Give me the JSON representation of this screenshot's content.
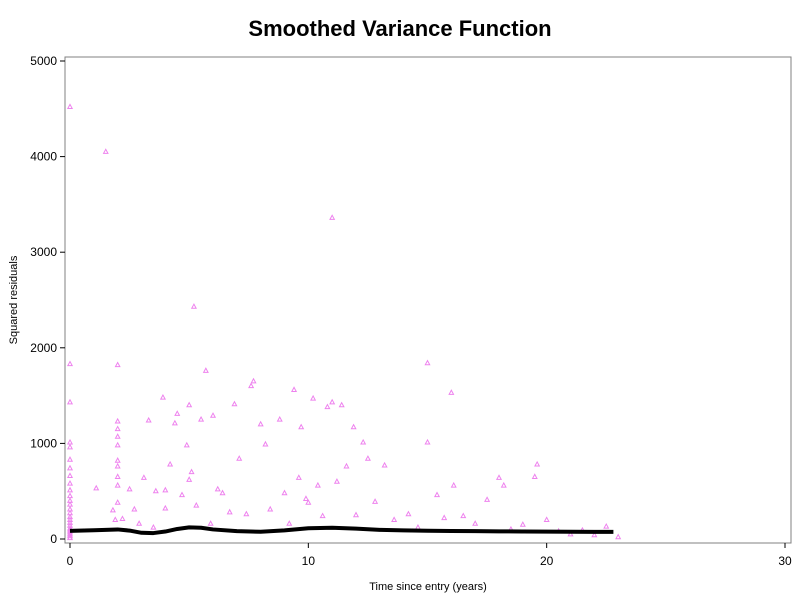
{
  "chart_data": {
    "type": "scatter",
    "title": "Smoothed Variance Function",
    "xlabel": "Time since entry (years)",
    "ylabel": "Squared residuals",
    "xlim": [
      0,
      30
    ],
    "ylim": [
      0,
      5000
    ],
    "xticks": [
      0,
      10,
      20,
      30
    ],
    "yticks": [
      0,
      1000,
      2000,
      3000,
      4000,
      5000
    ],
    "grid": false,
    "colors": {
      "points": "#ee82ee",
      "smooth": "#000000",
      "frame": "#808080"
    },
    "series": [
      {
        "kind": "points",
        "marker": "triangle",
        "points": [
          [
            0,
            4520
          ],
          [
            0,
            1830
          ],
          [
            0,
            1430
          ],
          [
            0,
            1010
          ],
          [
            0,
            960
          ],
          [
            0,
            830
          ],
          [
            0,
            740
          ],
          [
            0,
            660
          ],
          [
            0,
            580
          ],
          [
            0,
            510
          ],
          [
            0,
            450
          ],
          [
            0,
            400
          ],
          [
            0,
            360
          ],
          [
            0,
            310
          ],
          [
            0,
            270
          ],
          [
            0,
            230
          ],
          [
            0,
            200
          ],
          [
            0,
            170
          ],
          [
            0,
            140
          ],
          [
            0,
            110
          ],
          [
            0,
            90
          ],
          [
            0,
            70
          ],
          [
            0,
            50
          ],
          [
            0,
            30
          ],
          [
            0,
            10
          ],
          [
            1.1,
            530
          ],
          [
            1.5,
            4050
          ],
          [
            1.8,
            300
          ],
          [
            1.9,
            200
          ],
          [
            2.0,
            1820
          ],
          [
            2.0,
            1230
          ],
          [
            2.0,
            1150
          ],
          [
            2.0,
            1070
          ],
          [
            2.0,
            980
          ],
          [
            2.0,
            820
          ],
          [
            2.0,
            760
          ],
          [
            2.0,
            650
          ],
          [
            2.0,
            560
          ],
          [
            2.0,
            380
          ],
          [
            2.2,
            210
          ],
          [
            2.5,
            520
          ],
          [
            2.7,
            310
          ],
          [
            2.9,
            160
          ],
          [
            3.1,
            640
          ],
          [
            3.3,
            1240
          ],
          [
            3.5,
            120
          ],
          [
            3.6,
            500
          ],
          [
            3.9,
            1480
          ],
          [
            4.0,
            510
          ],
          [
            4.0,
            320
          ],
          [
            4.2,
            780
          ],
          [
            4.4,
            1210
          ],
          [
            4.5,
            1310
          ],
          [
            4.7,
            460
          ],
          [
            4.9,
            980
          ],
          [
            5.0,
            620
          ],
          [
            5.0,
            1400
          ],
          [
            5.1,
            700
          ],
          [
            5.2,
            2430
          ],
          [
            5.3,
            350
          ],
          [
            5.5,
            1250
          ],
          [
            5.7,
            1760
          ],
          [
            5.9,
            160
          ],
          [
            6.0,
            1290
          ],
          [
            6.2,
            520
          ],
          [
            6.4,
            480
          ],
          [
            6.7,
            280
          ],
          [
            6.9,
            1410
          ],
          [
            7.1,
            840
          ],
          [
            7.4,
            260
          ],
          [
            7.6,
            1600
          ],
          [
            7.7,
            1650
          ],
          [
            8.0,
            1200
          ],
          [
            8.2,
            990
          ],
          [
            8.4,
            310
          ],
          [
            8.8,
            1250
          ],
          [
            9.0,
            480
          ],
          [
            9.2,
            160
          ],
          [
            9.4,
            1560
          ],
          [
            9.6,
            640
          ],
          [
            9.7,
            1170
          ],
          [
            9.9,
            420
          ],
          [
            10.0,
            380
          ],
          [
            10.2,
            1470
          ],
          [
            10.4,
            560
          ],
          [
            10.6,
            240
          ],
          [
            10.8,
            1380
          ],
          [
            11.0,
            3360
          ],
          [
            11.0,
            1430
          ],
          [
            11.2,
            600
          ],
          [
            11.4,
            1400
          ],
          [
            11.6,
            760
          ],
          [
            11.9,
            1170
          ],
          [
            12.0,
            250
          ],
          [
            12.3,
            1010
          ],
          [
            12.5,
            840
          ],
          [
            12.8,
            390
          ],
          [
            13.2,
            770
          ],
          [
            13.6,
            200
          ],
          [
            14.2,
            260
          ],
          [
            14.6,
            120
          ],
          [
            15.0,
            1840
          ],
          [
            15.0,
            1010
          ],
          [
            15.4,
            460
          ],
          [
            15.7,
            220
          ],
          [
            16.0,
            1530
          ],
          [
            16.1,
            560
          ],
          [
            16.5,
            240
          ],
          [
            17.0,
            160
          ],
          [
            17.5,
            410
          ],
          [
            18.0,
            640
          ],
          [
            18.2,
            560
          ],
          [
            18.5,
            100
          ],
          [
            19.0,
            150
          ],
          [
            19.5,
            650
          ],
          [
            19.6,
            780
          ],
          [
            20.0,
            200
          ],
          [
            20.5,
            80
          ],
          [
            21.0,
            50
          ],
          [
            21.5,
            90
          ],
          [
            22.0,
            40
          ],
          [
            22.5,
            130
          ],
          [
            23.0,
            20
          ]
        ]
      },
      {
        "kind": "smooth",
        "marker": "line",
        "points": [
          [
            0,
            85
          ],
          [
            1,
            92
          ],
          [
            2,
            100
          ],
          [
            2.5,
            88
          ],
          [
            3,
            65
          ],
          [
            3.5,
            62
          ],
          [
            4,
            78
          ],
          [
            4.5,
            105
          ],
          [
            5,
            122
          ],
          [
            5.5,
            118
          ],
          [
            6,
            100
          ],
          [
            7,
            82
          ],
          [
            8,
            76
          ],
          [
            9,
            90
          ],
          [
            10,
            112
          ],
          [
            11,
            118
          ],
          [
            12,
            108
          ],
          [
            13,
            96
          ],
          [
            14,
            90
          ],
          [
            15,
            86
          ],
          [
            16,
            84
          ],
          [
            17,
            82
          ],
          [
            18,
            80
          ],
          [
            19,
            78
          ],
          [
            20,
            77
          ],
          [
            21,
            76
          ],
          [
            22,
            75
          ],
          [
            22.8,
            75
          ]
        ]
      }
    ]
  }
}
